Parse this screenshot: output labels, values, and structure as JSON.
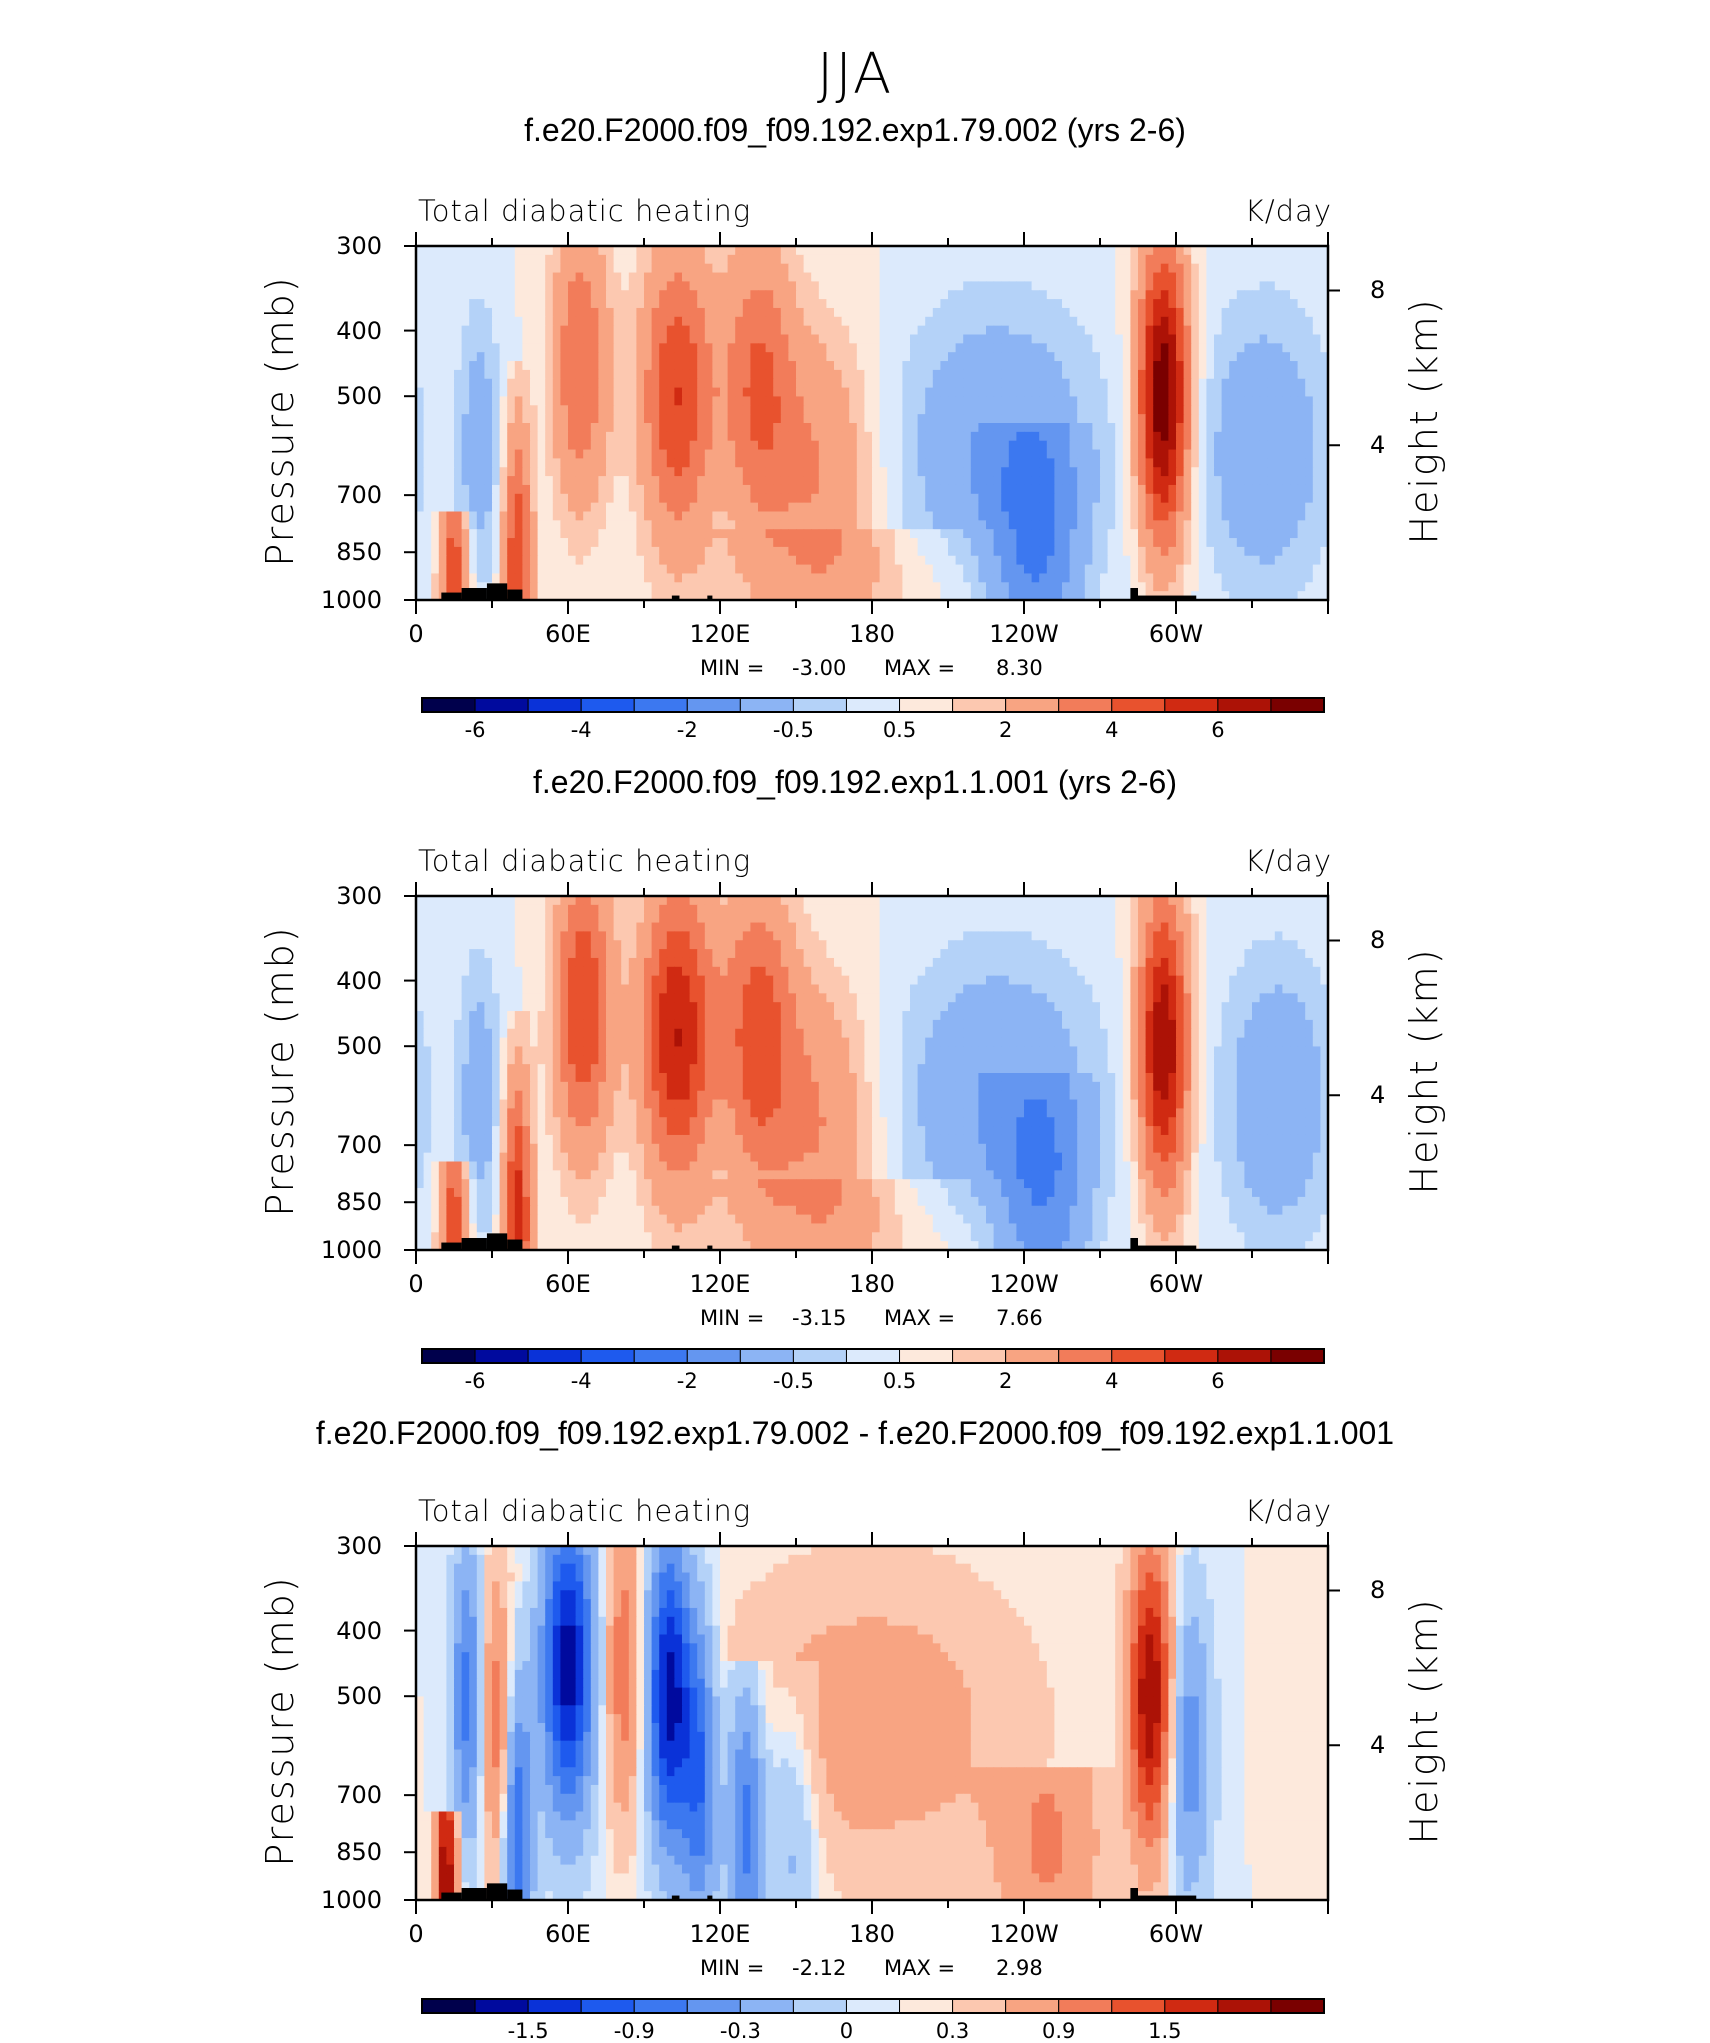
{
  "page": {
    "main_title": "JJA"
  },
  "colors": {
    "bar": [
      "#00004c",
      "#000a9e",
      "#0a32d8",
      "#1e5aee",
      "#3c78f0",
      "#6496f0",
      "#8cb4f4",
      "#b4d2f8",
      "#dceafc",
      "#fde9dc",
      "#fcc8b0",
      "#f8a482",
      "#f27c5a",
      "#e8522e",
      "#d02a12",
      "#ac1206",
      "#7a0000"
    ],
    "terrain": "#000000"
  },
  "chart_data": [
    {
      "type": "contour",
      "title": "f.e20.F2000.f09_f09.192.exp1.79.002 (yrs 2-6)",
      "variable": "Total diabatic heating",
      "units": "K/day",
      "xlabel": "",
      "ylabel": "Pressure (mb)",
      "ylabel_right": "Height (km)",
      "y_ticks": [
        "300",
        "400",
        "500",
        "700",
        "850",
        "1000"
      ],
      "y_right_ticks": [
        "8",
        "4"
      ],
      "x_ticks": [
        "0",
        "60E",
        "120E",
        "180",
        "120W",
        "60W"
      ],
      "min_label": "MIN =",
      "min": "-3.00",
      "max_label": "MAX =",
      "max": "8.30",
      "colorbar_labels": [
        "-6",
        "-4",
        "-2",
        "-0.5",
        "0.5",
        "2",
        "4",
        "6"
      ],
      "features": [
        {
          "lon": 15,
          "center_p": 960,
          "amp": 4,
          "width": 4,
          "top_p": 800
        },
        {
          "lon": 40,
          "center_p": 900,
          "amp": 4,
          "width": 4,
          "top_p": 500
        },
        {
          "lon": 25,
          "center_p": 600,
          "amp": -1.5,
          "width": 6,
          "top_p": 300
        },
        {
          "lon": 65,
          "center_p": 450,
          "amp": 3,
          "width": 8,
          "top_p": 300
        },
        {
          "lon": 103,
          "center_p": 500,
          "amp": 4,
          "width": 10,
          "top_p": 300
        },
        {
          "lon": 135,
          "center_p": 480,
          "amp": 3,
          "width": 10,
          "top_p": 300
        },
        {
          "lon": 160,
          "center_p": 650,
          "amp": 2,
          "width": 15,
          "top_p": 300
        },
        {
          "lon": 230,
          "center_p": 600,
          "amp": -2,
          "width": 28,
          "top_p": 300
        },
        {
          "lon": 245,
          "center_p": 850,
          "amp": -2.5,
          "width": 12,
          "top_p": 600
        },
        {
          "lon": 295,
          "center_p": 500,
          "amp": 7,
          "width": 7,
          "top_p": 300
        },
        {
          "lon": 335,
          "center_p": 600,
          "amp": -1.8,
          "width": 18,
          "top_p": 300
        },
        {
          "lon": 175,
          "center_p": 950,
          "amp": 0.8,
          "width": 40,
          "top_p": 850
        }
      ]
    },
    {
      "type": "contour",
      "title": "f.e20.F2000.f09_f09.192.exp1.1.001 (yrs 2-6)",
      "variable": "Total diabatic heating",
      "units": "K/day",
      "xlabel": "",
      "ylabel": "Pressure (mb)",
      "ylabel_right": "Height (km)",
      "y_ticks": [
        "300",
        "400",
        "500",
        "700",
        "850",
        "1000"
      ],
      "y_right_ticks": [
        "8",
        "4"
      ],
      "x_ticks": [
        "0",
        "60E",
        "120E",
        "180",
        "120W",
        "60W"
      ],
      "min_label": "MIN =",
      "min": "-3.15",
      "max_label": "MAX =",
      "max": "7.66",
      "colorbar_labels": [
        "-6",
        "-4",
        "-2",
        "-0.5",
        "0.5",
        "2",
        "4",
        "6"
      ],
      "features": [
        {
          "lon": 15,
          "center_p": 960,
          "amp": 4,
          "width": 4,
          "top_p": 800
        },
        {
          "lon": 40,
          "center_p": 900,
          "amp": 4.5,
          "width": 4,
          "top_p": 500
        },
        {
          "lon": 25,
          "center_p": 600,
          "amp": -1.5,
          "width": 6,
          "top_p": 300
        },
        {
          "lon": 66,
          "center_p": 440,
          "amp": 4,
          "width": 8,
          "top_p": 300
        },
        {
          "lon": 103,
          "center_p": 480,
          "amp": 5,
          "width": 10,
          "top_p": 300
        },
        {
          "lon": 135,
          "center_p": 480,
          "amp": 3.5,
          "width": 10,
          "top_p": 300
        },
        {
          "lon": 160,
          "center_p": 650,
          "amp": 2,
          "width": 15,
          "top_p": 300
        },
        {
          "lon": 230,
          "center_p": 600,
          "amp": -2,
          "width": 28,
          "top_p": 300
        },
        {
          "lon": 248,
          "center_p": 850,
          "amp": -2.2,
          "width": 12,
          "top_p": 600
        },
        {
          "lon": 295,
          "center_p": 500,
          "amp": 6,
          "width": 7,
          "top_p": 300
        },
        {
          "lon": 340,
          "center_p": 600,
          "amp": -1.8,
          "width": 16,
          "top_p": 300
        },
        {
          "lon": 175,
          "center_p": 950,
          "amp": 0.8,
          "width": 40,
          "top_p": 850
        }
      ]
    },
    {
      "type": "contour",
      "title": "f.e20.F2000.f09_f09.192.exp1.79.002 - f.e20.F2000.f09_f09.192.exp1.1.001",
      "variable": "Total diabatic heating",
      "units": "K/day",
      "xlabel": "",
      "ylabel": "Pressure (mb)",
      "ylabel_right": "Height (km)",
      "y_ticks": [
        "300",
        "400",
        "500",
        "700",
        "850",
        "1000"
      ],
      "y_right_ticks": [
        "8",
        "4"
      ],
      "x_ticks": [
        "0",
        "60E",
        "120E",
        "180",
        "120W",
        "60W"
      ],
      "min_label": "MIN =",
      "min": "-2.12",
      "max_label": "MAX =",
      "max": "2.98",
      "colorbar_labels": [
        "-1.5",
        "-0.9",
        "-0.3",
        "0",
        "0.3",
        "0.9",
        "1.5"
      ],
      "features": [
        {
          "lon": 12,
          "center_p": 930,
          "amp": 1.8,
          "width": 3,
          "top_p": 800
        },
        {
          "lon": 20,
          "center_p": 500,
          "amp": -1.0,
          "width": 4,
          "top_p": 300
        },
        {
          "lon": 32,
          "center_p": 550,
          "amp": 0.8,
          "width": 4,
          "top_p": 300
        },
        {
          "lon": 40,
          "center_p": 800,
          "amp": -1.2,
          "width": 4,
          "top_p": 400
        },
        {
          "lon": 60,
          "center_p": 450,
          "amp": -2.0,
          "width": 7,
          "top_p": 300
        },
        {
          "lon": 82,
          "center_p": 450,
          "amp": 0.8,
          "width": 5,
          "top_p": 300
        },
        {
          "lon": 100,
          "center_p": 500,
          "amp": -2.0,
          "width": 6,
          "top_p": 300
        },
        {
          "lon": 112,
          "center_p": 650,
          "amp": -1.2,
          "width": 5,
          "top_p": 300
        },
        {
          "lon": 130,
          "center_p": 750,
          "amp": -1.1,
          "width": 5,
          "top_p": 500
        },
        {
          "lon": 180,
          "center_p": 550,
          "amp": 0.5,
          "width": 40,
          "top_p": 300
        },
        {
          "lon": 148,
          "center_p": 750,
          "amp": -0.5,
          "width": 8,
          "top_p": 500
        },
        {
          "lon": 290,
          "center_p": 500,
          "amp": 1.8,
          "width": 6,
          "top_p": 300
        },
        {
          "lon": 305,
          "center_p": 600,
          "amp": -0.8,
          "width": 6,
          "top_p": 300
        },
        {
          "lon": 250,
          "center_p": 850,
          "amp": 0.6,
          "width": 15,
          "top_p": 700
        }
      ]
    }
  ]
}
